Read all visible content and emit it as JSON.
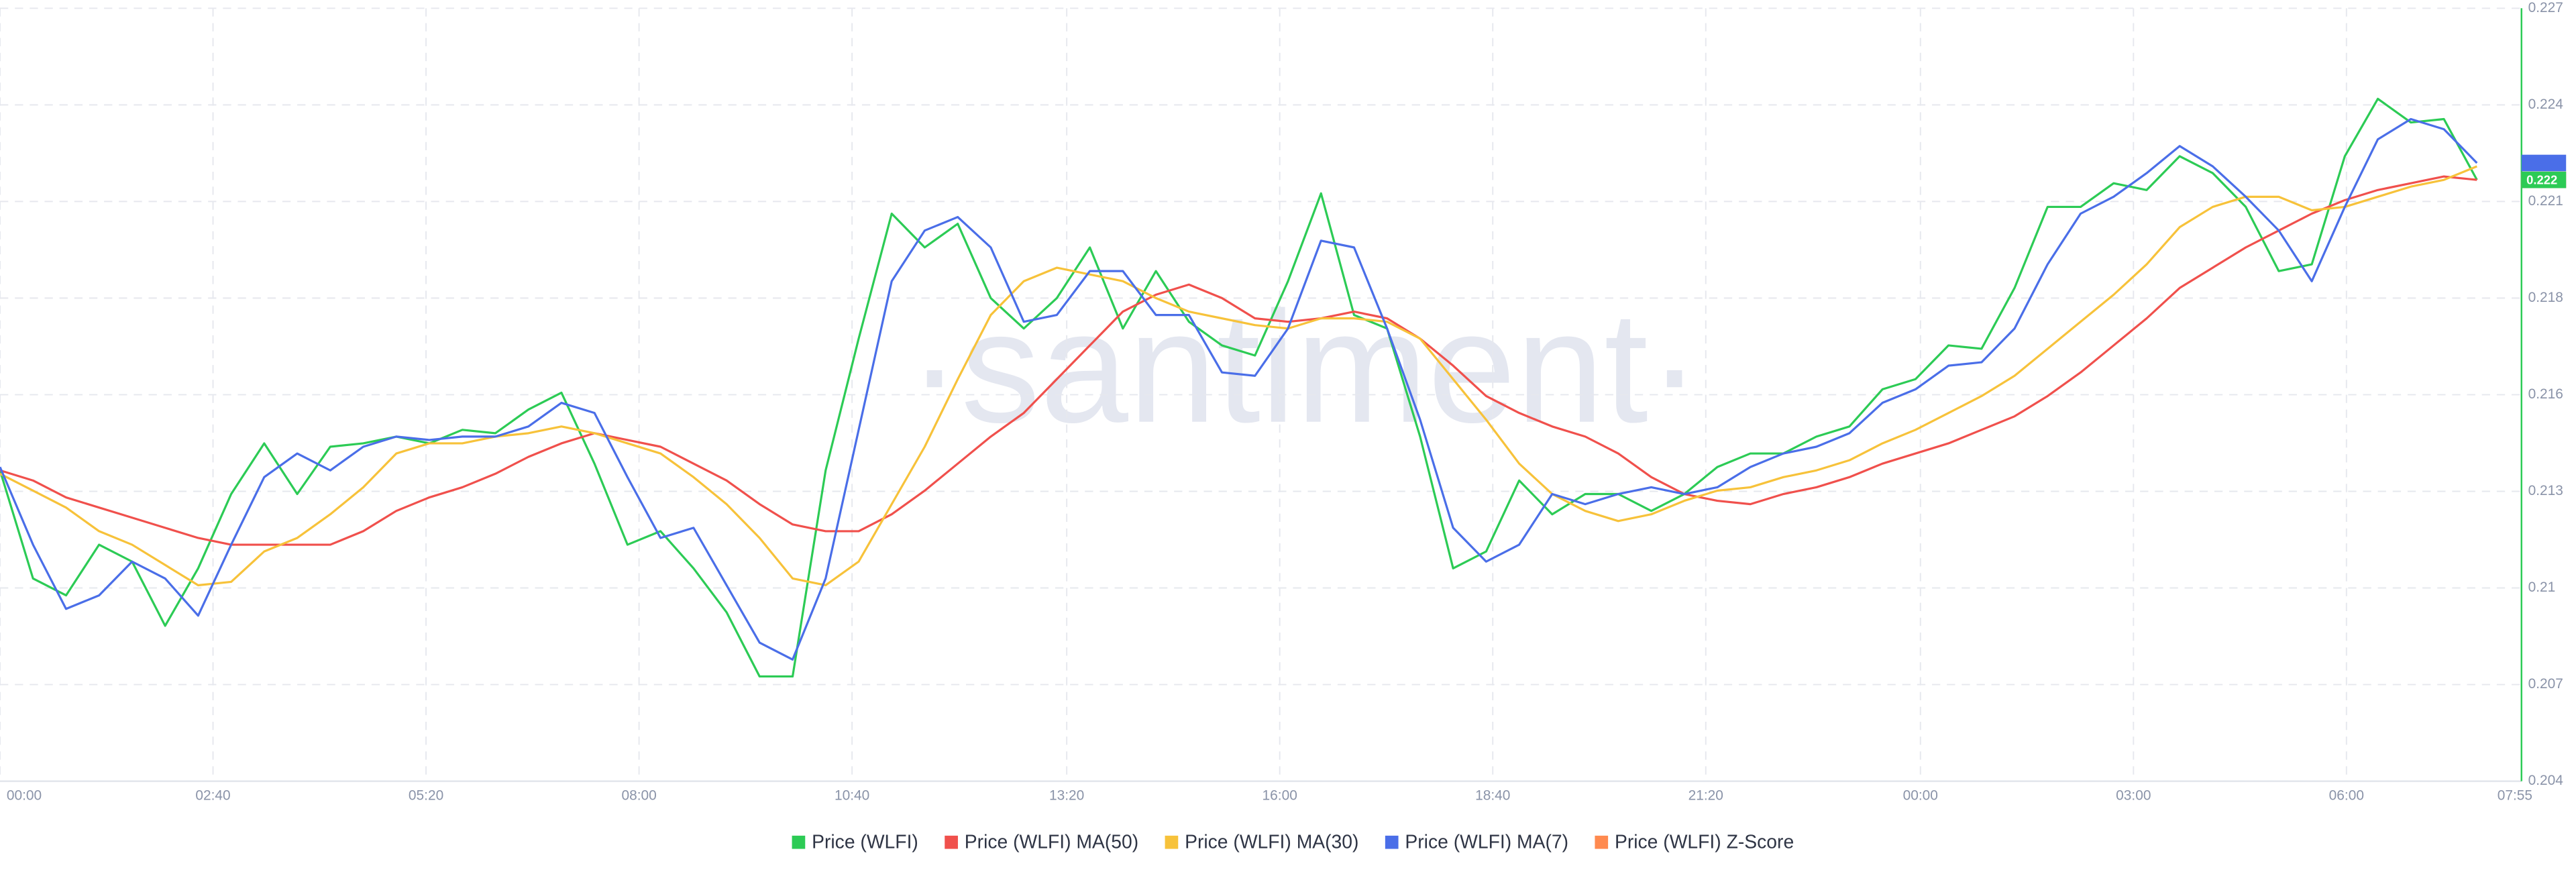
{
  "chart_data": {
    "type": "line",
    "watermark": "·santiment·",
    "xlim": [
      0,
      76.35
    ],
    "xticks": [
      {
        "value": 0,
        "label": "00:00"
      },
      {
        "value": 6.45,
        "label": "02:40"
      },
      {
        "value": 12.9,
        "label": "05:20"
      },
      {
        "value": 19.35,
        "label": "08:00"
      },
      {
        "value": 25.8,
        "label": "10:40"
      },
      {
        "value": 32.3,
        "label": "13:20"
      },
      {
        "value": 38.75,
        "label": "16:00"
      },
      {
        "value": 45.2,
        "label": "18:40"
      },
      {
        "value": 51.65,
        "label": "21:20"
      },
      {
        "value": 58.15,
        "label": "00:00"
      },
      {
        "value": 64.6,
        "label": "03:00"
      },
      {
        "value": 71.05,
        "label": "06:00"
      },
      {
        "value": 76.15,
        "label": "07:55"
      }
    ],
    "ylim": [
      0.2041,
      0.22698
    ],
    "yticks": [
      {
        "value": 0.2041,
        "label": "0.204"
      },
      {
        "value": 0.20696,
        "label": "0.207"
      },
      {
        "value": 0.20982,
        "label": "0.21"
      },
      {
        "value": 0.21268,
        "label": "0.213"
      },
      {
        "value": 0.21554,
        "label": "0.216"
      },
      {
        "value": 0.2184,
        "label": "0.218"
      },
      {
        "value": 0.22126,
        "label": "0.221"
      },
      {
        "value": 0.22412,
        "label": "0.224"
      },
      {
        "value": 0.22698,
        "label": "0.227"
      }
    ],
    "grid": true,
    "legend": "bottom",
    "series": [
      {
        "name": "Price (WLFI)",
        "color": "#2ccb55",
        "last_label": "0.222",
        "values": [
          0.2133,
          0.2101,
          0.2096,
          0.2111,
          0.2106,
          0.2087,
          0.2104,
          0.2126,
          0.2141,
          0.2126,
          0.214,
          0.2141,
          0.2143,
          0.2141,
          0.2145,
          0.2144,
          0.2151,
          0.2156,
          0.2135,
          0.2111,
          0.2115,
          0.2104,
          0.2091,
          0.2072,
          0.2072,
          0.2133,
          0.2172,
          0.2209,
          0.2199,
          0.2206,
          0.2184,
          0.2175,
          0.2184,
          0.2199,
          0.2175,
          0.2192,
          0.2177,
          0.217,
          0.2167,
          0.2189,
          0.2215,
          0.2179,
          0.2175,
          0.2143,
          0.2104,
          0.2109,
          0.213,
          0.212,
          0.2126,
          0.2126,
          0.2121,
          0.2126,
          0.2134,
          0.2138,
          0.2138,
          0.2143,
          0.2146,
          0.2157,
          0.216,
          0.217,
          0.2169,
          0.2187,
          0.2211,
          0.2211,
          0.2218,
          0.2216,
          0.2226,
          0.2221,
          0.2211,
          0.2192,
          0.2194,
          0.2226,
          0.2243,
          0.2236,
          0.2237,
          0.2219
        ]
      },
      {
        "name": "Price (WLFI) MA(50)",
        "color": "#f0504c",
        "last_label": "0.222",
        "values": [
          0.2133,
          0.213,
          0.2125,
          0.2122,
          0.2119,
          0.2116,
          0.2113,
          0.2111,
          0.2111,
          0.2111,
          0.2111,
          0.2115,
          0.2121,
          0.2125,
          0.2128,
          0.2132,
          0.2137,
          0.2141,
          0.2144,
          0.2142,
          0.214,
          0.2135,
          0.213,
          0.2123,
          0.2117,
          0.2115,
          0.2115,
          0.212,
          0.2127,
          0.2135,
          0.2143,
          0.215,
          0.216,
          0.217,
          0.218,
          0.2185,
          0.2188,
          0.2184,
          0.2178,
          0.2177,
          0.2178,
          0.218,
          0.2178,
          0.2172,
          0.2164,
          0.2155,
          0.215,
          0.2146,
          0.2143,
          0.2138,
          0.2131,
          0.2126,
          0.2124,
          0.2123,
          0.2126,
          0.2128,
          0.2131,
          0.2135,
          0.2138,
          0.2141,
          0.2145,
          0.2149,
          0.2155,
          0.2162,
          0.217,
          0.2178,
          0.2187,
          0.2193,
          0.2199,
          0.2204,
          0.2209,
          0.2213,
          0.2216,
          0.2218,
          0.222,
          0.2219
        ]
      },
      {
        "name": "Price (WLFI) MA(30)",
        "color": "#f7c23a",
        "values": [
          0.2132,
          0.2127,
          0.2122,
          0.2115,
          0.2111,
          0.2105,
          0.2099,
          0.21,
          0.2109,
          0.2113,
          0.212,
          0.2128,
          0.2138,
          0.2141,
          0.2141,
          0.2143,
          0.2144,
          0.2146,
          0.2144,
          0.2141,
          0.2138,
          0.2131,
          0.2123,
          0.2113,
          0.2101,
          0.2099,
          0.2106,
          0.2123,
          0.214,
          0.216,
          0.2179,
          0.2189,
          0.2193,
          0.2191,
          0.2189,
          0.2184,
          0.218,
          0.2178,
          0.2176,
          0.2175,
          0.2178,
          0.2178,
          0.2177,
          0.2172,
          0.216,
          0.2148,
          0.2135,
          0.2126,
          0.2121,
          0.2118,
          0.212,
          0.2124,
          0.2127,
          0.2128,
          0.2131,
          0.2133,
          0.2136,
          0.2141,
          0.2145,
          0.215,
          0.2155,
          0.2161,
          0.2169,
          0.2177,
          0.2185,
          0.2194,
          0.2205,
          0.2211,
          0.2214,
          0.2214,
          0.221,
          0.2211,
          0.2214,
          0.2217,
          0.2219,
          0.2223
        ]
      },
      {
        "name": "Price (WLFI) MA(7)",
        "color": "#4a6ee8",
        "badge": true,
        "values": [
          0.2134,
          0.2111,
          0.2092,
          0.2096,
          0.2106,
          0.2101,
          0.209,
          0.2111,
          0.2131,
          0.2138,
          0.2133,
          0.214,
          0.2143,
          0.2142,
          0.2143,
          0.2143,
          0.2146,
          0.2153,
          0.215,
          0.2131,
          0.2113,
          0.2116,
          0.2099,
          0.2082,
          0.2077,
          0.2101,
          0.2145,
          0.2189,
          0.2204,
          0.2208,
          0.2199,
          0.2177,
          0.2179,
          0.2192,
          0.2192,
          0.2179,
          0.2179,
          0.2162,
          0.2161,
          0.2175,
          0.2201,
          0.2199,
          0.2175,
          0.2148,
          0.2116,
          0.2106,
          0.2111,
          0.2126,
          0.2123,
          0.2126,
          0.2128,
          0.2126,
          0.2128,
          0.2134,
          0.2138,
          0.214,
          0.2144,
          0.2153,
          0.2157,
          0.2164,
          0.2165,
          0.2175,
          0.2194,
          0.2209,
          0.2214,
          0.2221,
          0.2229,
          0.2223,
          0.2214,
          0.2204,
          0.2189,
          0.2211,
          0.2231,
          0.2237,
          0.2234,
          0.2224
        ]
      },
      {
        "name": "Price (WLFI) Z-Score",
        "color": "#ff8a4f"
      }
    ]
  }
}
